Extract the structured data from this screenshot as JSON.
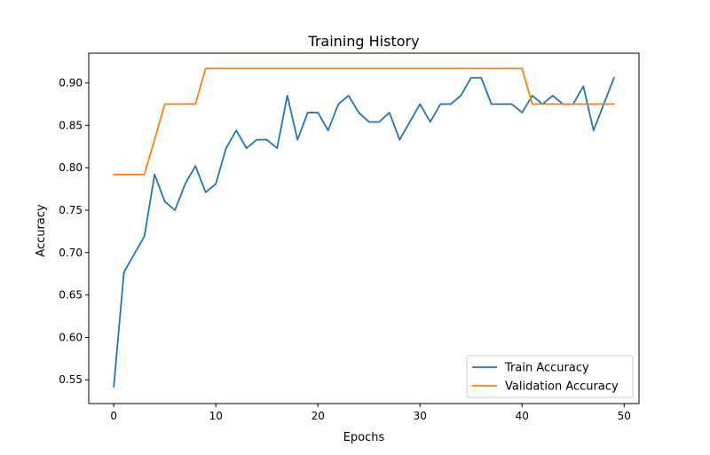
{
  "chart_data": {
    "type": "line",
    "title": "Training History",
    "xlabel": "Epochs",
    "ylabel": "Accuracy",
    "xlim": [
      -2.45,
      51.45
    ],
    "ylim": [
      0.522,
      0.935
    ],
    "xticks": [
      0,
      10,
      20,
      30,
      40,
      50
    ],
    "yticks": [
      0.55,
      0.6,
      0.65,
      0.7,
      0.75,
      0.8,
      0.85,
      0.9
    ],
    "xtick_labels": [
      "0",
      "10",
      "20",
      "30",
      "40",
      "50"
    ],
    "ytick_labels": [
      "0.55",
      "0.60",
      "0.65",
      "0.70",
      "0.75",
      "0.80",
      "0.85",
      "0.90"
    ],
    "grid": false,
    "legend_position": "lower-right",
    "x": [
      0,
      1,
      2,
      3,
      4,
      5,
      6,
      7,
      8,
      9,
      10,
      11,
      12,
      13,
      14,
      15,
      16,
      17,
      18,
      19,
      20,
      21,
      22,
      23,
      24,
      25,
      26,
      27,
      28,
      29,
      30,
      31,
      32,
      33,
      34,
      35,
      36,
      37,
      38,
      39,
      40,
      41,
      42,
      43,
      44,
      45,
      46,
      47,
      48,
      49
    ],
    "series": [
      {
        "name": "Train Accuracy",
        "color": "#1f77b4",
        "values": [
          0.542,
          0.677,
          0.698,
          0.719,
          0.792,
          0.76,
          0.75,
          0.781,
          0.802,
          0.771,
          0.781,
          0.823,
          0.844,
          0.823,
          0.833,
          0.833,
          0.823,
          0.885,
          0.833,
          0.865,
          0.865,
          0.844,
          0.875,
          0.885,
          0.865,
          0.854,
          0.854,
          0.865,
          0.833,
          0.854,
          0.875,
          0.854,
          0.875,
          0.875,
          0.885,
          0.906,
          0.906,
          0.875,
          0.875,
          0.875,
          0.865,
          0.885,
          0.875,
          0.885,
          0.875,
          0.875,
          0.896,
          0.844,
          0.875,
          0.906
        ]
      },
      {
        "name": "Validation Accuracy",
        "color": "#ff7f0e",
        "values": [
          0.792,
          0.792,
          0.792,
          0.792,
          0.833,
          0.875,
          0.875,
          0.875,
          0.875,
          0.917,
          0.917,
          0.917,
          0.917,
          0.917,
          0.917,
          0.917,
          0.917,
          0.917,
          0.917,
          0.917,
          0.917,
          0.917,
          0.917,
          0.917,
          0.917,
          0.917,
          0.917,
          0.917,
          0.917,
          0.917,
          0.917,
          0.917,
          0.917,
          0.917,
          0.917,
          0.917,
          0.917,
          0.917,
          0.917,
          0.917,
          0.917,
          0.875,
          0.875,
          0.875,
          0.875,
          0.875,
          0.875,
          0.875,
          0.875,
          0.875
        ]
      }
    ]
  }
}
